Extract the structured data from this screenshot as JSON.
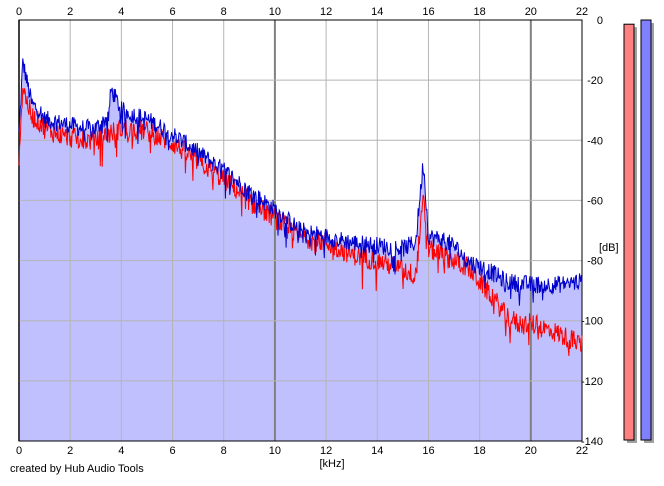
{
  "credit": "created by Hub Audio Tools",
  "chart_data": {
    "type": "area",
    "xlabel": "[kHz]",
    "ylabel": "[dB]",
    "xlim": [
      0,
      22
    ],
    "ylim": [
      -140,
      0
    ],
    "x_ticks": [
      0,
      2,
      4,
      6,
      8,
      10,
      12,
      14,
      16,
      18,
      20,
      22
    ],
    "y_ticks": [
      0,
      -20,
      -40,
      -60,
      -80,
      -100,
      -120,
      -140
    ],
    "grid": true,
    "colors": {
      "fill": "#c0c0ff",
      "series_blue": "#0000cc",
      "series_red": "#ff0000",
      "grid_minor": "#b4b4b4",
      "grid_major": "#808080",
      "meter_left": "#ff8080",
      "meter_right": "#8080ff"
    },
    "series": [
      {
        "color": "blue",
        "x": [
          0,
          0.15,
          0.3,
          0.5,
          0.8,
          1.0,
          1.5,
          2.0,
          2.5,
          3.0,
          3.5,
          3.6,
          4.0,
          5.0,
          6.0,
          7.0,
          8.0,
          9.0,
          10.0,
          11.0,
          12.0,
          13.0,
          14.0,
          15.0,
          15.5,
          15.8,
          16.0,
          16.5,
          17.0,
          17.5,
          18.0,
          18.5,
          19.0,
          20.0,
          21.0,
          22.0
        ],
        "y": [
          -38,
          -14,
          -20,
          -28,
          -30,
          -33,
          -34,
          -35,
          -36,
          -36,
          -32,
          -23,
          -30,
          -33,
          -38,
          -44,
          -50,
          -57,
          -63,
          -70,
          -72,
          -74,
          -75,
          -76,
          -74,
          -47,
          -72,
          -73,
          -75,
          -80,
          -82,
          -84,
          -87,
          -88,
          -88,
          -87
        ]
      },
      {
        "color": "red",
        "x": [
          0,
          0.15,
          0.3,
          0.5,
          0.8,
          1.0,
          1.5,
          2.0,
          2.5,
          3.0,
          3.5,
          4.0,
          5.0,
          6.0,
          7.0,
          8.0,
          9.0,
          10.0,
          11.0,
          12.0,
          13.0,
          14.0,
          15.0,
          15.5,
          15.8,
          16.0,
          16.5,
          17.0,
          17.5,
          18.0,
          18.5,
          19.0,
          19.5,
          20.0,
          21.0,
          22.0
        ],
        "y": [
          -45,
          -22,
          -27,
          -32,
          -34,
          -36,
          -38,
          -39,
          -40,
          -40,
          -38,
          -36,
          -37,
          -41,
          -47,
          -53,
          -60,
          -66,
          -72,
          -74,
          -78,
          -80,
          -83,
          -85,
          -60,
          -76,
          -78,
          -80,
          -82,
          -87,
          -92,
          -98,
          -101,
          -101,
          -104,
          -108
        ]
      }
    ],
    "level_meters": [
      {
        "channel": "left",
        "level": 0.99
      },
      {
        "channel": "right",
        "level": 1.0
      }
    ]
  }
}
